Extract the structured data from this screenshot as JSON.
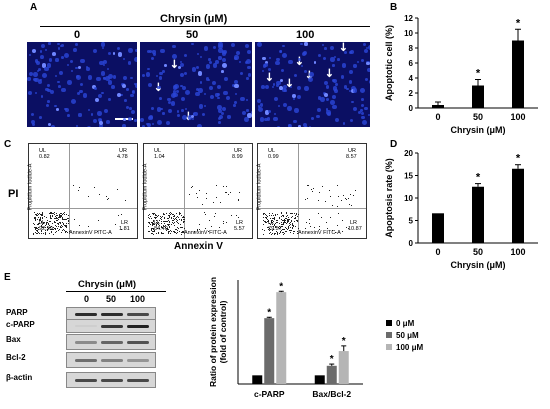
{
  "panel_a": {
    "label": "A",
    "title": "Chrysin (μM)",
    "images": [
      {
        "conc": "0",
        "arrows": 0
      },
      {
        "conc": "50",
        "arrows": 3
      },
      {
        "conc": "100",
        "arrows": 6
      }
    ]
  },
  "panel_b": {
    "label": "B",
    "chart_data": {
      "type": "bar",
      "categories": [
        "0",
        "50",
        "100"
      ],
      "values": [
        0.4,
        3.0,
        9.0
      ],
      "errors": [
        0.4,
        0.8,
        1.5
      ],
      "significance": [
        "",
        "*",
        "*"
      ],
      "ylabel": "Apoptotic cell (%)",
      "xlabel": "Chrysin (μM)",
      "yticks": [
        "0",
        "2",
        "4",
        "6",
        "8",
        "10",
        "12"
      ],
      "ylim": [
        0,
        12
      ]
    }
  },
  "panel_c": {
    "label": "C",
    "ylabel": "PI",
    "xlabel": "Annexin V",
    "plots": [
      {
        "ul": "UL",
        "ul_val": "0.82",
        "ur": "UR",
        "ur_val": "4.78",
        "ll": "LL",
        "ll_val": "92.59",
        "lr": "LR",
        "lr_val": "1.81"
      },
      {
        "ul": "UL",
        "ul_val": "1.04",
        "ur": "UR",
        "ur_val": "8.99",
        "ll": "LL",
        "ll_val": "84.40",
        "lr": "LR",
        "lr_val": "5.57"
      },
      {
        "ul": "UL",
        "ul_val": "0.99",
        "ur": "UR",
        "ur_val": "8.57",
        "ll": "LL",
        "ll_val": "79.57",
        "lr": "LR",
        "lr_val": "10.87"
      }
    ],
    "axis_y_label": "Propidium Iodide-A",
    "axis_x_label": "AnnexinV FITC-A"
  },
  "panel_d": {
    "label": "D",
    "chart_data": {
      "type": "bar",
      "categories": [
        "0",
        "50",
        "100"
      ],
      "values": [
        6.6,
        12.5,
        16.5
      ],
      "errors": [
        0,
        0.7,
        0.9
      ],
      "significance": [
        "",
        "*",
        "*"
      ],
      "ylabel": "Apoptosis rate (%)",
      "xlabel": "Chrysin (μM)",
      "yticks": [
        "0",
        "5",
        "10",
        "15",
        "20"
      ],
      "ylim": [
        0,
        20
      ]
    }
  },
  "panel_e": {
    "label": "E",
    "blot": {
      "title": "Chrysin (μM)",
      "lanes": [
        "0",
        "50",
        "100"
      ],
      "rows": [
        "PARP",
        "c-PARP",
        "Bax",
        "Bcl-2",
        "β-actin"
      ]
    },
    "chart_data": {
      "type": "bar",
      "categories": [
        "c-PARP",
        "Bax/Bcl-2"
      ],
      "series": [
        {
          "name": "0 μM",
          "color": "#000000",
          "values": [
            1.0,
            1.0
          ],
          "errors": [
            0,
            0
          ]
        },
        {
          "name": "50 μM",
          "color": "#6b6b6b",
          "values": [
            7.6,
            2.1
          ],
          "errors": [
            0.1,
            0.2
          ],
          "significance": [
            "*",
            "*"
          ]
        },
        {
          "name": "100 μM",
          "color": "#b5b5b5",
          "values": [
            10.6,
            3.8
          ],
          "errors": [
            0.1,
            0.6
          ],
          "significance": [
            "*",
            "*"
          ]
        }
      ],
      "ylabel": "Ratio of protein expression (fold of control)",
      "ylim": [
        0,
        12
      ]
    }
  }
}
